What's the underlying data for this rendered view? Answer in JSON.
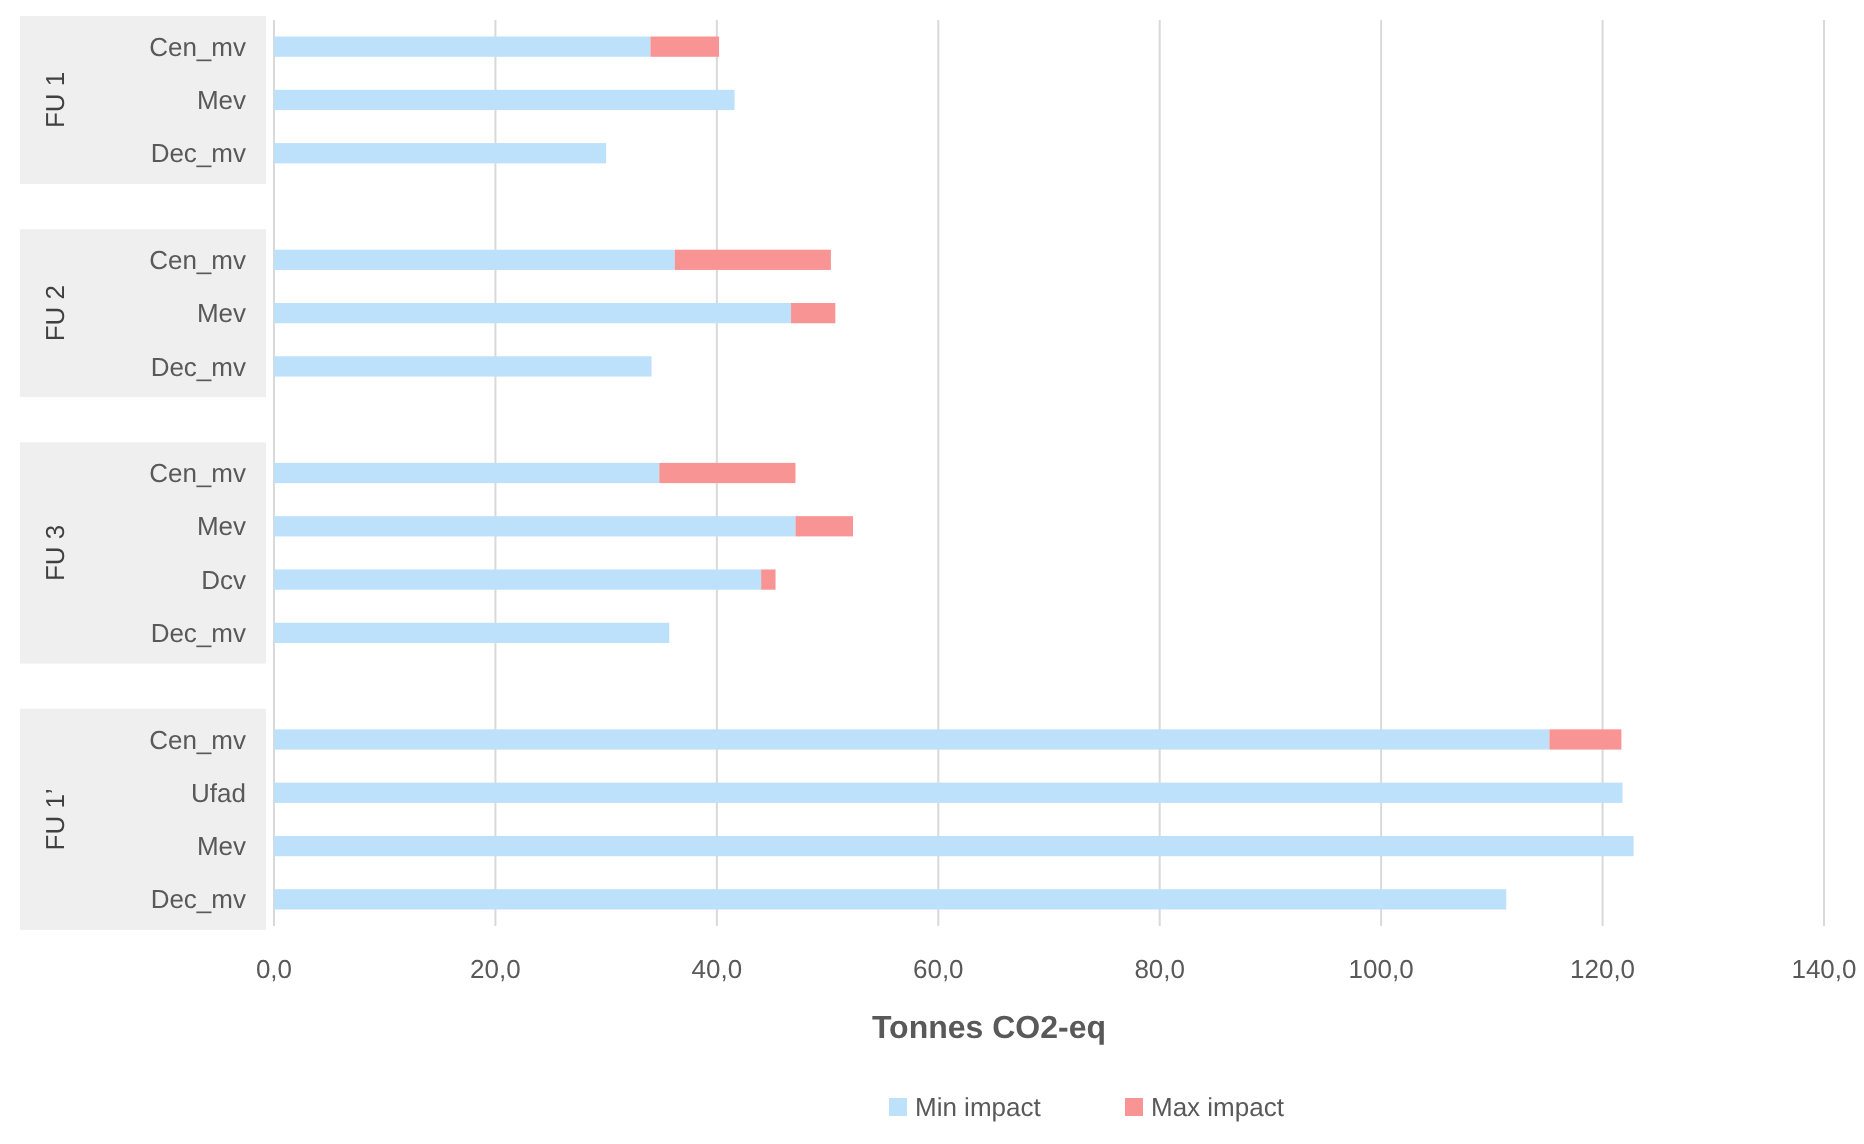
{
  "chart_data": {
    "type": "bar",
    "orientation": "horizontal",
    "stacked": true,
    "categories": [
      "Cen_mv",
      "Mev",
      "Dec_mv",
      null,
      "Cen_mv",
      "Mev",
      "Dec_mv",
      null,
      "Cen_mv",
      "Mev",
      "Dcv",
      "Dec_mv",
      null,
      "Cen_mv",
      "Ufad",
      "Mev",
      "Dec_mv"
    ],
    "series": [
      {
        "name": "Min impact",
        "color": "#bde0fb",
        "values": [
          34.0,
          41.6,
          30.0,
          null,
          36.2,
          46.7,
          34.1,
          null,
          34.8,
          47.1,
          44.0,
          35.7,
          null,
          115.2,
          121.8,
          122.8,
          111.3
        ]
      },
      {
        "name": "Max impact",
        "color": "#f99494",
        "values": [
          6.2,
          null,
          null,
          null,
          14.1,
          4.0,
          null,
          null,
          12.3,
          5.2,
          1.3,
          null,
          null,
          6.5,
          null,
          null,
          null
        ]
      }
    ],
    "xlim": [
      0,
      140
    ],
    "xticks": [
      {
        "value": 0,
        "label": "0,0"
      },
      {
        "value": 20,
        "label": "20,0"
      },
      {
        "value": 40,
        "label": "40,0"
      },
      {
        "value": 60,
        "label": "60,0"
      },
      {
        "value": 80,
        "label": "80,0"
      },
      {
        "value": 100,
        "label": "100,0"
      },
      {
        "value": 120,
        "label": "120,0"
      },
      {
        "value": 140,
        "label": "140,0"
      }
    ],
    "xlabel": "Tonnes CO2-eq",
    "annotations": [
      "FU 1",
      "FU 2",
      "FU 3",
      "FU 1’"
    ],
    "grid": "x",
    "legend": "bottom"
  }
}
